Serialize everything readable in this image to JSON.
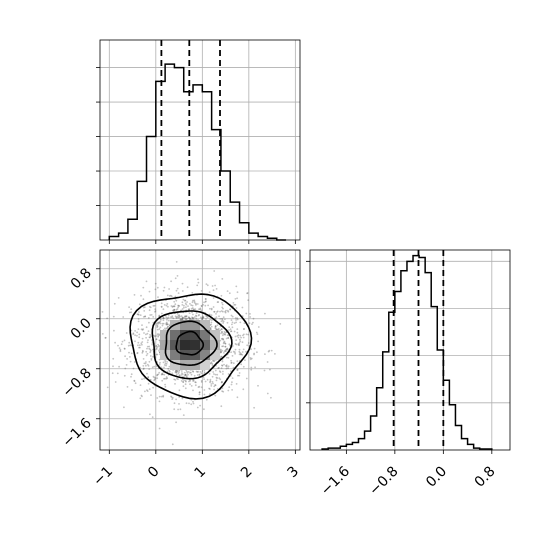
{
  "chart_data": {
    "type": "corner",
    "grid": true,
    "panels": [
      {
        "id": "hist-x",
        "type": "histogram",
        "xlim": [
          -1.2,
          3.1
        ],
        "bin_edges": [
          -1.0,
          -0.8,
          -0.6,
          -0.4,
          -0.2,
          0.0,
          0.2,
          0.4,
          0.6,
          0.8,
          1.0,
          1.2,
          1.4,
          1.6,
          1.8,
          2.0,
          2.2,
          2.4,
          2.6,
          2.8
        ],
        "counts": [
          1,
          2,
          6,
          17,
          30,
          46,
          51,
          50,
          43,
          45,
          43,
          32,
          20,
          11,
          5,
          2,
          1,
          0.5,
          0
        ],
        "ymax": 58,
        "quantile_lines": [
          0.12,
          0.72,
          1.38
        ]
      },
      {
        "id": "hist-y",
        "type": "histogram",
        "xlim": [
          -2.2,
          1.1
        ],
        "bin_edges": [
          -2.0,
          -1.9,
          -1.8,
          -1.7,
          -1.6,
          -1.5,
          -1.4,
          -1.3,
          -1.2,
          -1.1,
          -1.0,
          -0.9,
          -0.8,
          -0.7,
          -0.6,
          -0.5,
          -0.4,
          -0.3,
          -0.2,
          -0.1,
          0.0,
          0.1,
          0.2,
          0.3,
          0.4,
          0.5,
          0.6,
          0.7,
          0.8
        ],
        "counts": [
          0.5,
          1,
          1,
          2,
          3,
          4,
          6,
          10,
          18,
          33,
          52,
          73,
          84,
          95,
          100,
          103,
          102,
          94,
          76,
          53,
          37,
          24,
          13,
          6,
          3,
          1,
          0.5,
          0.5
        ],
        "ymax": 106,
        "quantile_lines": [
          -0.82,
          -0.41,
          0.0
        ]
      },
      {
        "id": "hist-2d",
        "type": "density-contour",
        "xlim": [
          -1.2,
          3.1
        ],
        "ylim": [
          -2.1,
          1.1
        ],
        "center": [
          0.72,
          -0.4
        ],
        "spread": [
          0.62,
          0.4
        ],
        "contour_levels": [
          0.12,
          0.4,
          0.68,
          0.9
        ]
      }
    ],
    "x_axis_ticks": [
      "−1",
      "0",
      "1",
      "2",
      "3"
    ],
    "y_axis_ticks": [
      "0.8",
      "0.0",
      "−0.8",
      "−1.6"
    ],
    "diag_axis_ticks": [
      "−1.6",
      "−0.8",
      "0.0",
      "0.8"
    ],
    "colors": {
      "line": "#000000",
      "grid": "#b0b0b0",
      "points": "#555555"
    }
  }
}
